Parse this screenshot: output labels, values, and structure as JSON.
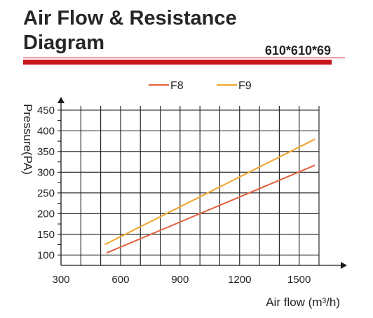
{
  "header": {
    "title_line1": "Air Flow & Resistance",
    "title_line2": "Diagram",
    "model": "610*610*69",
    "accent_color": "#c9151e"
  },
  "chart_data": {
    "type": "line",
    "xlabel": "Air flow (m³/h)",
    "ylabel": "Pressure(PA)",
    "xlim": [
      300,
      1600
    ],
    "ylim": [
      75,
      460
    ],
    "x_ticks": [
      300,
      600,
      900,
      1200,
      1500
    ],
    "y_ticks": [
      100,
      150,
      200,
      250,
      300,
      350,
      400,
      450
    ],
    "grid": true,
    "legend_position": "top-center",
    "series": [
      {
        "name": "F8",
        "color": "#e4623e",
        "x": [
          530,
          1580
        ],
        "y": [
          105,
          317
        ]
      },
      {
        "name": "F9",
        "color": "#f0a52b",
        "x": [
          520,
          1580
        ],
        "y": [
          125,
          380
        ]
      }
    ]
  }
}
